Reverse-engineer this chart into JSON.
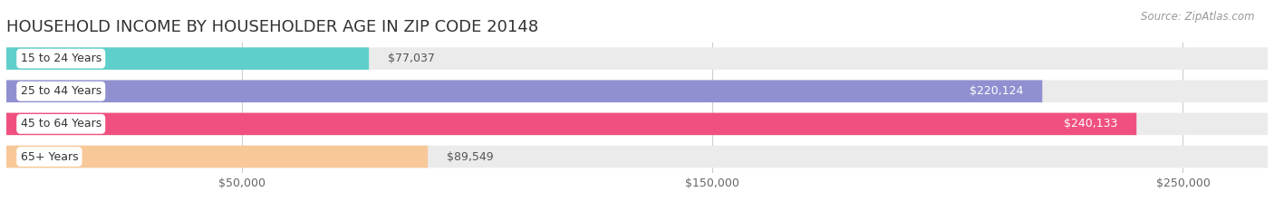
{
  "title": "HOUSEHOLD INCOME BY HOUSEHOLDER AGE IN ZIP CODE 20148",
  "source": "Source: ZipAtlas.com",
  "categories": [
    "15 to 24 Years",
    "25 to 44 Years",
    "45 to 64 Years",
    "65+ Years"
  ],
  "values": [
    77037,
    220124,
    240133,
    89549
  ],
  "bar_colors": [
    "#5ecfca",
    "#9090d0",
    "#f05080",
    "#f8c898"
  ],
  "bar_bg_color": "#ebebeb",
  "value_labels": [
    "$77,037",
    "$220,124",
    "$240,133",
    "$89,549"
  ],
  "label_inside": [
    false,
    true,
    true,
    false
  ],
  "x_ticks": [
    50000,
    150000,
    250000
  ],
  "x_tick_labels": [
    "$50,000",
    "$150,000",
    "$250,000"
  ],
  "xlim": [
    0,
    268000
  ],
  "background_color": "#ffffff",
  "title_fontsize": 13,
  "source_fontsize": 8.5,
  "bar_height": 0.68,
  "label_pill_color": "#ffffff"
}
